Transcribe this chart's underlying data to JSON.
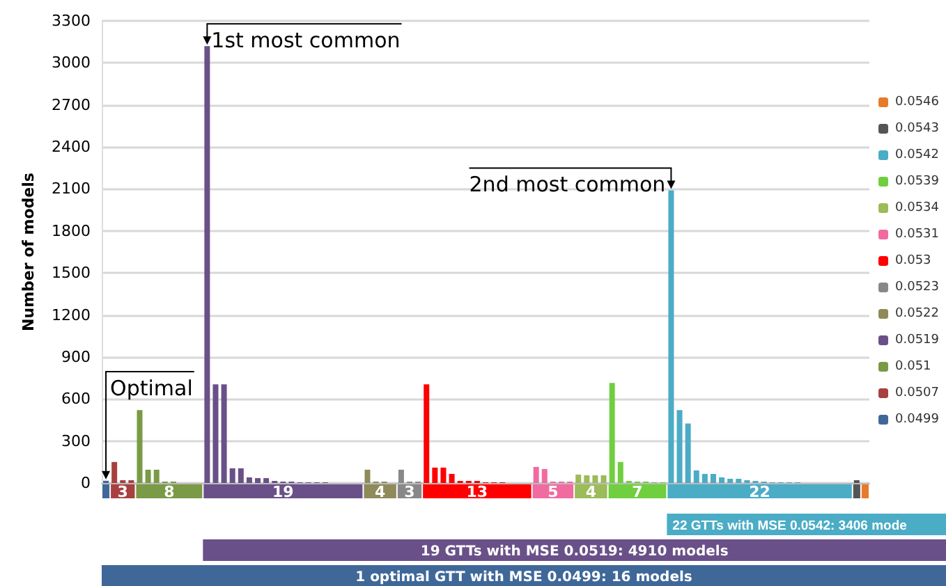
{
  "chart_data": {
    "type": "bar",
    "ylabel": "Number of models",
    "categories": [
      null,
      null,
      null,
      null,
      null,
      null,
      null,
      null,
      null,
      null,
      null,
      null,
      null,
      null,
      null,
      null,
      null,
      null,
      null,
      null,
      null,
      null,
      null,
      null,
      null,
      null,
      null,
      null,
      null,
      null,
      null,
      null,
      null,
      null,
      null,
      null,
      null,
      null,
      null,
      null,
      null,
      null,
      null,
      null,
      null,
      null,
      null,
      null,
      null,
      null,
      null,
      null,
      null,
      null,
      null,
      null,
      null,
      null,
      null,
      null,
      null,
      null,
      null,
      null,
      null,
      null,
      null,
      null,
      null,
      null,
      null,
      null,
      null,
      null,
      null,
      null,
      null,
      null,
      null,
      null,
      null,
      null,
      null,
      null,
      null,
      null,
      null,
      null,
      null,
      null,
      null
    ],
    "ylim": [
      0,
      3300
    ],
    "yticks": [
      0,
      300,
      600,
      900,
      1200,
      1500,
      1800,
      2100,
      2400,
      2700,
      3000,
      3300
    ],
    "grid": "y",
    "legend": "right",
    "series": [
      {
        "name": "0.0499",
        "color": "#3f6899",
        "values": [
          16,
          null,
          null,
          null,
          null,
          null,
          null,
          null,
          null,
          null,
          null,
          null,
          null,
          null,
          null,
          null,
          null,
          null,
          null,
          null,
          null,
          null,
          null,
          null,
          null,
          null,
          null,
          null,
          null,
          null,
          null,
          null,
          null,
          null,
          null,
          null,
          null,
          null,
          null,
          null,
          null,
          null,
          null,
          null,
          null,
          null,
          null,
          null,
          null,
          null,
          null,
          null,
          null,
          null,
          null,
          null,
          null,
          null,
          null,
          null,
          null,
          null,
          null,
          null,
          null,
          null,
          null,
          null,
          null,
          null,
          null,
          null,
          null,
          null,
          null,
          null,
          null,
          null,
          null,
          null,
          null,
          null,
          null,
          null,
          null,
          null,
          null,
          null,
          null,
          null,
          null
        ]
      },
      {
        "name": "0.0507",
        "color": "#a84040",
        "values": [
          null,
          150,
          20,
          20,
          null,
          null,
          null,
          null,
          null,
          null,
          null,
          null,
          null,
          null,
          null,
          null,
          null,
          null,
          null,
          null,
          null,
          null,
          null,
          null,
          null,
          null,
          null,
          null,
          null,
          null,
          null,
          null,
          null,
          null,
          null,
          null,
          null,
          null,
          null,
          null,
          null,
          null,
          null,
          null,
          null,
          null,
          null,
          null,
          null,
          null,
          null,
          null,
          null,
          null,
          null,
          null,
          null,
          null,
          null,
          null,
          null,
          null,
          null,
          null,
          null,
          null,
          null,
          null,
          null,
          null,
          null,
          null,
          null,
          null,
          null,
          null,
          null,
          null,
          null,
          null,
          null,
          null,
          null,
          null,
          null,
          null,
          null,
          null,
          null,
          null,
          null
        ]
      },
      {
        "name": "0.051",
        "color": "#7a9a45",
        "values": [
          null,
          null,
          null,
          null,
          520,
          95,
          95,
          10,
          10,
          0,
          0,
          0,
          null,
          null,
          null,
          null,
          null,
          null,
          null,
          null,
          null,
          null,
          null,
          null,
          null,
          null,
          null,
          null,
          null,
          null,
          null,
          null,
          null,
          null,
          null,
          null,
          null,
          null,
          null,
          null,
          null,
          null,
          null,
          null,
          null,
          null,
          null,
          null,
          null,
          null,
          null,
          null,
          null,
          null,
          null,
          null,
          null,
          null,
          null,
          null,
          null,
          null,
          null,
          null,
          null,
          null,
          null,
          null,
          null,
          null,
          null,
          null,
          null,
          null,
          null,
          null,
          null,
          null,
          null,
          null,
          null,
          null,
          null,
          null,
          null,
          null,
          null,
          null,
          null,
          null,
          null
        ]
      },
      {
        "name": "0.0519",
        "color": "#6a5088",
        "values": [
          null,
          null,
          null,
          null,
          null,
          null,
          null,
          null,
          null,
          null,
          null,
          null,
          3120,
          705,
          705,
          105,
          105,
          40,
          35,
          35,
          15,
          10,
          10,
          5,
          5,
          5,
          5,
          0,
          0,
          0,
          0,
          null,
          null,
          null,
          null,
          null,
          null,
          null,
          null,
          null,
          null,
          null,
          null,
          null,
          null,
          null,
          null,
          null,
          null,
          null,
          null,
          null,
          null,
          null,
          null,
          null,
          null,
          null,
          null,
          null,
          null,
          null,
          null,
          null,
          null,
          null,
          null,
          null,
          null,
          null,
          null,
          null,
          null,
          null,
          null,
          null,
          null,
          null,
          null,
          null,
          null,
          null,
          null,
          null,
          null,
          null,
          null,
          null,
          null,
          null,
          null
        ]
      },
      {
        "name": "0.0522",
        "color": "#8f8a5a",
        "values": [
          null,
          null,
          null,
          null,
          null,
          null,
          null,
          null,
          null,
          null,
          null,
          null,
          null,
          null,
          null,
          null,
          null,
          null,
          null,
          null,
          null,
          null,
          null,
          null,
          null,
          null,
          null,
          null,
          null,
          null,
          null,
          95,
          10,
          10,
          0,
          null,
          null,
          null,
          null,
          null,
          null,
          null,
          null,
          null,
          null,
          null,
          null,
          null,
          null,
          null,
          null,
          null,
          null,
          null,
          null,
          null,
          null,
          null,
          null,
          null,
          null,
          null,
          null,
          null,
          null,
          null,
          null,
          null,
          null,
          null,
          null,
          null,
          null,
          null,
          null,
          null,
          null,
          null,
          null,
          null,
          null,
          null,
          null,
          null,
          null,
          null,
          null,
          null,
          null,
          null,
          null
        ]
      },
      {
        "name": "0.0523",
        "color": "#888888",
        "values": [
          null,
          null,
          null,
          null,
          null,
          null,
          null,
          null,
          null,
          null,
          null,
          null,
          null,
          null,
          null,
          null,
          null,
          null,
          null,
          null,
          null,
          null,
          null,
          null,
          null,
          null,
          null,
          null,
          null,
          null,
          null,
          null,
          null,
          null,
          null,
          95,
          10,
          10,
          null,
          null,
          null,
          null,
          null,
          null,
          null,
          null,
          null,
          null,
          null,
          null,
          null,
          null,
          null,
          null,
          null,
          null,
          null,
          null,
          null,
          null,
          null,
          null,
          null,
          null,
          null,
          null,
          null,
          null,
          null,
          null,
          null,
          null,
          null,
          null,
          null,
          null,
          null,
          null,
          null,
          null,
          null,
          null,
          null,
          null,
          null,
          null,
          null,
          null,
          null,
          null,
          null
        ]
      },
      {
        "name": "0.053",
        "color": "#ff0000",
        "values": [
          null,
          null,
          null,
          null,
          null,
          null,
          null,
          null,
          null,
          null,
          null,
          null,
          null,
          null,
          null,
          null,
          null,
          null,
          null,
          null,
          null,
          null,
          null,
          null,
          null,
          null,
          null,
          null,
          null,
          null,
          null,
          null,
          null,
          null,
          null,
          null,
          null,
          null,
          705,
          110,
          110,
          65,
          15,
          15,
          15,
          5,
          5,
          5,
          0,
          0,
          0,
          null,
          null,
          null,
          null,
          null,
          null,
          null,
          null,
          null,
          null,
          null,
          null,
          null,
          null,
          null,
          null,
          null,
          null,
          null,
          null,
          null,
          null,
          null,
          null,
          null,
          null,
          null,
          null,
          null,
          null,
          null,
          null,
          null,
          null,
          null,
          null,
          null,
          null,
          null,
          null
        ]
      },
      {
        "name": "0.0531",
        "color": "#f06ba0",
        "values": [
          null,
          null,
          null,
          null,
          null,
          null,
          null,
          null,
          null,
          null,
          null,
          null,
          null,
          null,
          null,
          null,
          null,
          null,
          null,
          null,
          null,
          null,
          null,
          null,
          null,
          null,
          null,
          null,
          null,
          null,
          null,
          null,
          null,
          null,
          null,
          null,
          null,
          null,
          null,
          null,
          null,
          null,
          null,
          null,
          null,
          null,
          null,
          null,
          null,
          null,
          null,
          115,
          100,
          10,
          10,
          10,
          null,
          null,
          null,
          null,
          null,
          null,
          null,
          null,
          null,
          null,
          null,
          null,
          null,
          null,
          null,
          null,
          null,
          null,
          null,
          null,
          null,
          null,
          null,
          null,
          null,
          null,
          null,
          null,
          null,
          null,
          null,
          null,
          null,
          null,
          null
        ]
      },
      {
        "name": "0.0534",
        "color": "#9cbb59",
        "values": [
          null,
          null,
          null,
          null,
          null,
          null,
          null,
          null,
          null,
          null,
          null,
          null,
          null,
          null,
          null,
          null,
          null,
          null,
          null,
          null,
          null,
          null,
          null,
          null,
          null,
          null,
          null,
          null,
          null,
          null,
          null,
          null,
          null,
          null,
          null,
          null,
          null,
          null,
          null,
          null,
          null,
          null,
          null,
          null,
          null,
          null,
          null,
          null,
          null,
          null,
          null,
          null,
          null,
          null,
          null,
          null,
          60,
          55,
          55,
          55,
          null,
          null,
          null,
          null,
          null,
          null,
          null,
          null,
          null,
          null,
          null,
          null,
          null,
          null,
          null,
          null,
          null,
          null,
          null,
          null,
          null,
          null,
          null,
          null,
          null,
          null,
          null,
          null,
          null,
          null,
          null
        ]
      },
      {
        "name": "0.0539",
        "color": "#6fcf3f",
        "values": [
          null,
          null,
          null,
          null,
          null,
          null,
          null,
          null,
          null,
          null,
          null,
          null,
          null,
          null,
          null,
          null,
          null,
          null,
          null,
          null,
          null,
          null,
          null,
          null,
          null,
          null,
          null,
          null,
          null,
          null,
          null,
          null,
          null,
          null,
          null,
          null,
          null,
          null,
          null,
          null,
          null,
          null,
          null,
          null,
          null,
          null,
          null,
          null,
          null,
          null,
          null,
          null,
          null,
          null,
          null,
          null,
          null,
          null,
          null,
          null,
          715,
          150,
          15,
          10,
          10,
          5,
          5,
          null,
          null,
          null,
          null,
          null,
          null,
          null,
          null,
          null,
          null,
          null,
          null,
          null,
          null,
          null,
          null,
          null,
          null,
          null,
          null,
          null,
          null,
          null,
          null
        ]
      },
      {
        "name": "0.0542",
        "color": "#4bacc6",
        "values": [
          null,
          null,
          null,
          null,
          null,
          null,
          null,
          null,
          null,
          null,
          null,
          null,
          null,
          null,
          null,
          null,
          null,
          null,
          null,
          null,
          null,
          null,
          null,
          null,
          null,
          null,
          null,
          null,
          null,
          null,
          null,
          null,
          null,
          null,
          null,
          null,
          null,
          null,
          null,
          null,
          null,
          null,
          null,
          null,
          null,
          null,
          null,
          null,
          null,
          null,
          null,
          null,
          null,
          null,
          null,
          null,
          null,
          null,
          null,
          null,
          null,
          null,
          null,
          null,
          null,
          null,
          null,
          2090,
          520,
          425,
          90,
          65,
          65,
          40,
          30,
          30,
          20,
          15,
          10,
          5,
          5,
          5,
          5,
          0,
          0,
          0,
          0,
          0,
          0,
          null,
          null
        ]
      },
      {
        "name": "0.0543",
        "color": "#555555",
        "values": [
          null,
          null,
          null,
          null,
          null,
          null,
          null,
          null,
          null,
          null,
          null,
          null,
          null,
          null,
          null,
          null,
          null,
          null,
          null,
          null,
          null,
          null,
          null,
          null,
          null,
          null,
          null,
          null,
          null,
          null,
          null,
          null,
          null,
          null,
          null,
          null,
          null,
          null,
          null,
          null,
          null,
          null,
          null,
          null,
          null,
          null,
          null,
          null,
          null,
          null,
          null,
          null,
          null,
          null,
          null,
          null,
          null,
          null,
          null,
          null,
          null,
          null,
          null,
          null,
          null,
          null,
          null,
          null,
          null,
          null,
          null,
          null,
          null,
          null,
          null,
          null,
          null,
          null,
          null,
          null,
          null,
          null,
          null,
          null,
          null,
          null,
          null,
          null,
          null,
          20,
          null
        ]
      },
      {
        "name": "0.0546",
        "color": "#e87b2a",
        "values": [
          null,
          null,
          null,
          null,
          null,
          null,
          null,
          null,
          null,
          null,
          null,
          null,
          null,
          null,
          null,
          null,
          null,
          null,
          null,
          null,
          null,
          null,
          null,
          null,
          null,
          null,
          null,
          null,
          null,
          null,
          null,
          null,
          null,
          null,
          null,
          null,
          null,
          null,
          null,
          null,
          null,
          null,
          null,
          null,
          null,
          null,
          null,
          null,
          null,
          null,
          null,
          null,
          null,
          null,
          null,
          null,
          null,
          null,
          null,
          null,
          null,
          null,
          null,
          null,
          null,
          null,
          null,
          null,
          null,
          null,
          null,
          null,
          null,
          null,
          null,
          null,
          null,
          null,
          null,
          null,
          null,
          null,
          null,
          null,
          null,
          null,
          null,
          null,
          null,
          null,
          0
        ]
      }
    ],
    "annotations": [
      "Optimal",
      "1st most common",
      "2nd most common",
      "3",
      "8",
      "19",
      "4",
      "3",
      "13",
      "5",
      "4",
      "7",
      "22",
      "22 GTTs with MSE 0.0542: 3406 mode",
      "19 GTTs with MSE 0.0519: 4910 models",
      "1 optimal GTT with MSE 0.0499: 16 models"
    ]
  }
}
